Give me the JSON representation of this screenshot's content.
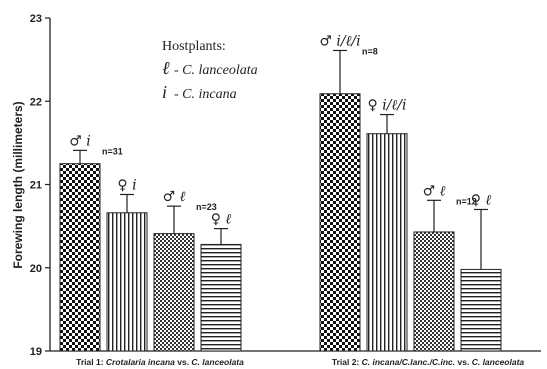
{
  "chart_data": {
    "type": "bar",
    "ylabel": "Forewing length (millimeters)",
    "ylim": [
      19,
      23
    ],
    "yticks": [
      "19",
      "20",
      "21",
      "22",
      "23"
    ],
    "groups": [
      {
        "label_prefix": "Trial 1: ",
        "label_italic": "Crotalaria incana",
        "label_mid": " vs. ",
        "label_italic2": "C. lanceolata",
        "bars": [
          {
            "label": "♂ i",
            "value": 21.25,
            "error": 0.16,
            "pattern": "checker-large",
            "n_label": "n=31"
          },
          {
            "label": "♀ i",
            "value": 20.66,
            "error": 0.22,
            "pattern": "vertical",
            "n_label": ""
          },
          {
            "label": "♂ ℓ",
            "value": 20.41,
            "error": 0.33,
            "pattern": "checker-small",
            "n_label": "n=23"
          },
          {
            "label": "♀ ℓ",
            "value": 20.28,
            "error": 0.19,
            "pattern": "horizontal",
            "n_label": ""
          }
        ]
      },
      {
        "label_prefix": "Trial 2: ",
        "label_italic": "C. incana/C.lanc./C.inc.",
        "label_mid": " vs. ",
        "label_italic2": "C. lanceolata",
        "bars": [
          {
            "label": "♂ i/ℓ/i",
            "value": 22.09,
            "error": 0.52,
            "pattern": "checker-large",
            "n_label": "n=8"
          },
          {
            "label": "♀ i/ℓ/i",
            "value": 21.61,
            "error": 0.23,
            "pattern": "vertical",
            "n_label": ""
          },
          {
            "label": "♂ ℓ",
            "value": 20.43,
            "error": 0.38,
            "pattern": "checker-small",
            "n_label": "n=12"
          },
          {
            "label": "♀ ℓ",
            "value": 19.98,
            "error": 0.72,
            "pattern": "horizontal",
            "n_label": ""
          }
        ]
      }
    ],
    "legend": {
      "title": "Hostplants:",
      "items": [
        {
          "symbol": "ℓ",
          "text": "- C. lanceolata"
        },
        {
          "symbol": "i",
          "text": "- C. incana"
        }
      ]
    }
  }
}
